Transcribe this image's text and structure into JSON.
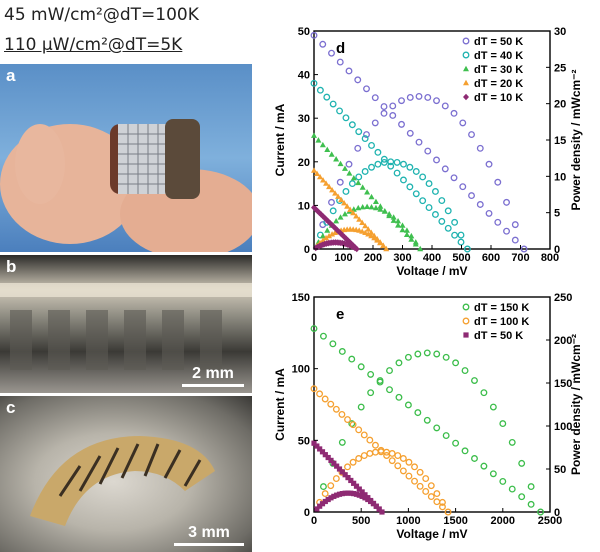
{
  "header": {
    "line1": "45 mW/cm²@dT=100K",
    "line2": "110 µW/cm²@dT=5K"
  },
  "panels": {
    "a": {
      "label": "a"
    },
    "b": {
      "label": "b",
      "scale": "2 mm"
    },
    "c": {
      "label": "c",
      "scale": "3 mm"
    }
  },
  "chart_data": [
    {
      "panel": "d",
      "type": "scatter",
      "xlabel": "Voltage / mV",
      "ylabel": "Current / mA",
      "y2label": "Power density / mWcm⁻²",
      "xlim": [
        0,
        800
      ],
      "ylim": [
        0,
        50
      ],
      "y2lim": [
        0,
        30
      ],
      "xticks": [
        0,
        100,
        200,
        300,
        400,
        500,
        600,
        700,
        800
      ],
      "yticks": [
        0,
        10,
        20,
        30,
        40,
        50
      ],
      "y2ticks": [
        0,
        5,
        10,
        15,
        20,
        25,
        30
      ],
      "legend_position": "top-right",
      "series": [
        {
          "name": "dT = 50 K",
          "color": "#7b6fd0",
          "marker": "circle",
          "voc": 712,
          "isc": 49,
          "pmax": 21
        },
        {
          "name": "dT = 40 K",
          "color": "#1fb3b0",
          "marker": "circle",
          "voc": 520,
          "isc": 38,
          "pmax": 12
        },
        {
          "name": "dT = 30 K",
          "color": "#3fbf4f",
          "marker": "triangle",
          "voc": 360,
          "isc": 26,
          "pmax": 5.8
        },
        {
          "name": "dT = 20 K",
          "color": "#f5a030",
          "marker": "triangle",
          "voc": 245,
          "isc": 18,
          "pmax": 2.7
        },
        {
          "name": "dT = 10 K",
          "color": "#8e2a73",
          "marker": "diamond",
          "voc": 145,
          "isc": 9.5,
          "pmax": 0.9
        }
      ]
    },
    {
      "panel": "e",
      "type": "scatter",
      "xlabel": "Voltage / mV",
      "ylabel": "Current / mA",
      "y2label": "Power density / mWcm⁻²",
      "xlim": [
        0,
        2500
      ],
      "ylim": [
        0,
        150
      ],
      "y2lim": [
        0,
        250
      ],
      "xticks": [
        0,
        500,
        1000,
        1500,
        2000,
        2500
      ],
      "yticks": [
        0,
        50,
        100,
        150
      ],
      "y2ticks": [
        0,
        50,
        100,
        150,
        200,
        250
      ],
      "legend_position": "top-right",
      "series": [
        {
          "name": "dT = 150 K",
          "color": "#3bbd4a",
          "marker": "circle",
          "voc": 2400,
          "isc": 128,
          "pmax": 185
        },
        {
          "name": "dT = 100 K",
          "color": "#f5a030",
          "marker": "circle",
          "voc": 1420,
          "isc": 86,
          "pmax": 70
        },
        {
          "name": "dT = 50 K",
          "color": "#8e2a73",
          "marker": "square",
          "voc": 720,
          "isc": 48,
          "pmax": 22
        }
      ]
    }
  ]
}
